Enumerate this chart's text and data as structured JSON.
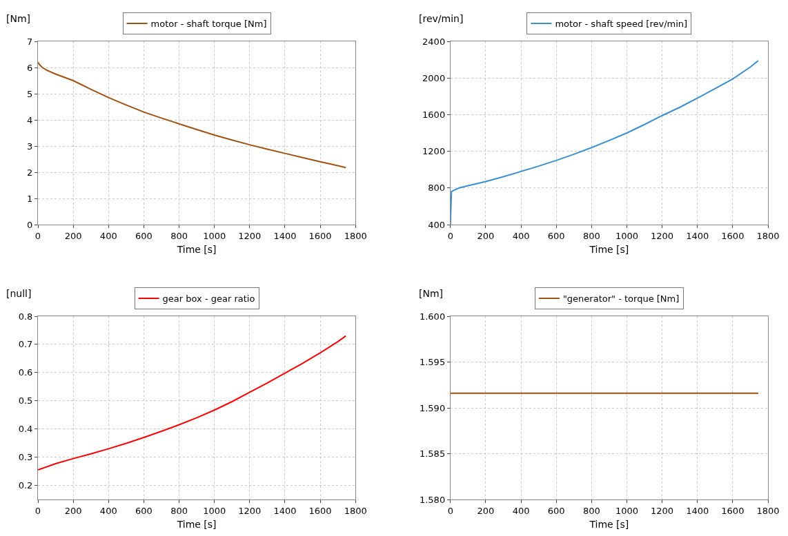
{
  "chart_data": [
    {
      "type": "line",
      "xlabel": "Time [s]",
      "ylabel": "[Nm]",
      "x": [
        0,
        10,
        25,
        50,
        100,
        200,
        300,
        400,
        500,
        600,
        700,
        800,
        900,
        1000,
        1100,
        1200,
        1300,
        1400,
        1500,
        1600,
        1700,
        1745
      ],
      "series": [
        {
          "name": "motor - shaft torque [Nm]",
          "color": "#a0500f",
          "values": [
            6.2,
            6.1,
            6.0,
            5.9,
            5.75,
            5.5,
            5.17,
            4.85,
            4.57,
            4.3,
            4.07,
            3.85,
            3.63,
            3.42,
            3.23,
            3.05,
            2.88,
            2.72,
            2.56,
            2.4,
            2.25,
            2.18
          ]
        }
      ],
      "xlim": [
        0,
        1800
      ],
      "xticks": [
        0,
        200,
        400,
        600,
        800,
        1000,
        1200,
        1400,
        1600,
        1800
      ],
      "ylim": [
        0,
        7
      ],
      "yticks": [
        0,
        1,
        2,
        3,
        4,
        5,
        6,
        7
      ],
      "grid": true,
      "legend": "top",
      "marker": "none",
      "line_style": "solid"
    },
    {
      "type": "line",
      "xlabel": "Time [s]",
      "ylabel": "[rev/min]",
      "x": [
        0,
        3,
        6,
        20,
        50,
        100,
        200,
        300,
        400,
        500,
        600,
        700,
        800,
        900,
        1000,
        1100,
        1200,
        1300,
        1400,
        1500,
        1600,
        1700,
        1745
      ],
      "series": [
        {
          "name": "motor - shaft speed [rev/min]",
          "color": "#3a8fd0",
          "values": [
            400,
            600,
            760,
            775,
            800,
            825,
            870,
            922,
            980,
            1038,
            1100,
            1168,
            1240,
            1318,
            1400,
            1492,
            1590,
            1680,
            1780,
            1884,
            1990,
            2120,
            2190
          ]
        }
      ],
      "xlim": [
        0,
        1800
      ],
      "xticks": [
        0,
        200,
        400,
        600,
        800,
        1000,
        1200,
        1400,
        1600,
        1800
      ],
      "ylim": [
        400,
        2400
      ],
      "yticks": [
        400,
        800,
        1200,
        1600,
        2000,
        2400
      ],
      "grid": true,
      "legend": "top",
      "marker": "none",
      "line_style": "solid"
    },
    {
      "type": "line",
      "xlabel": "Time [s]",
      "ylabel": "[null]",
      "x": [
        0,
        100,
        200,
        300,
        400,
        500,
        600,
        700,
        800,
        900,
        1000,
        1100,
        1200,
        1300,
        1400,
        1500,
        1600,
        1700,
        1745
      ],
      "series": [
        {
          "name": "gear box - gear ratio",
          "color": "#ff0000",
          "values": [
            0.255,
            0.277,
            0.295,
            0.312,
            0.33,
            0.349,
            0.37,
            0.392,
            0.415,
            0.44,
            0.467,
            0.497,
            0.53,
            0.563,
            0.598,
            0.633,
            0.67,
            0.71,
            0.73
          ]
        }
      ],
      "xlim": [
        0,
        1800
      ],
      "xticks": [
        0,
        200,
        400,
        600,
        800,
        1000,
        1200,
        1400,
        1600,
        1800
      ],
      "ylim": [
        0.15,
        0.8
      ],
      "yticks": [
        0.2,
        0.3,
        0.4,
        0.5,
        0.6,
        0.7,
        0.8
      ],
      "grid": true,
      "legend": "top",
      "marker": "none",
      "line_style": "solid"
    },
    {
      "type": "line",
      "xlabel": "Time [s]",
      "ylabel": "[Nm]",
      "x": [
        0,
        1745
      ],
      "series": [
        {
          "name": "\"generator\" - torque [Nm]",
          "color": "#a0500f",
          "values": [
            1.5916,
            1.5916
          ]
        }
      ],
      "xlim": [
        0,
        1800
      ],
      "xticks": [
        0,
        200,
        400,
        600,
        800,
        1000,
        1200,
        1400,
        1600,
        1800
      ],
      "ylim": [
        1.58,
        1.6
      ],
      "yticks": [
        {
          "value": 1.58,
          "label": "1.580"
        },
        {
          "value": 1.585,
          "label": "1.585"
        },
        {
          "value": 1.59,
          "label": "1.590"
        },
        {
          "value": 1.595,
          "label": "1.595"
        },
        {
          "value": 1.6,
          "label": "1.600"
        }
      ],
      "grid": true,
      "legend": "top",
      "marker": "none",
      "line_style": "solid"
    }
  ]
}
